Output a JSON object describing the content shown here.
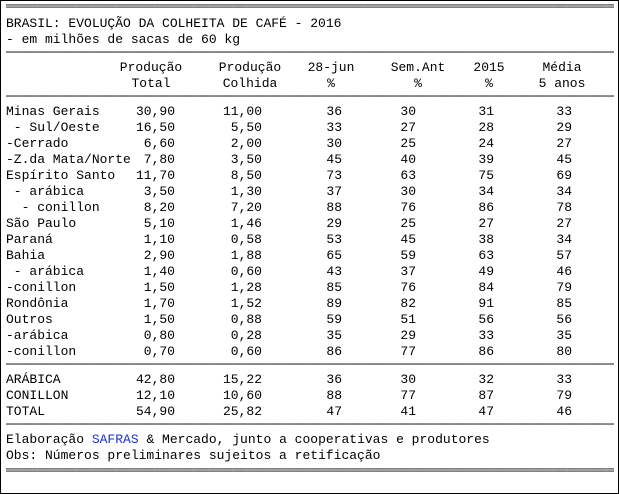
{
  "title": "BRASIL: EVOLUÇÃO DA COLHEITA DE CAFÉ - 2016",
  "subtitle": "- em milhões de sacas de 60 kg",
  "headers": [
    {
      "line1": "Produção",
      "line2": "Total"
    },
    {
      "line1": "Produção",
      "line2": "Colhida"
    },
    {
      "line1": "28-jun",
      "line2": "%"
    },
    {
      "line1": "Sem.Ant",
      "line2": "%"
    },
    {
      "line1": "2015",
      "line2": "%"
    },
    {
      "line1": "Média",
      "line2": "5 anos"
    }
  ],
  "rows": [
    [
      "Minas Gerais",
      "30,90",
      "11,00",
      "36",
      "30",
      "31",
      "33"
    ],
    [
      " - Sul/Oeste",
      "16,50",
      "5,50",
      "33",
      "27",
      "28",
      "29"
    ],
    [
      "-Cerrado",
      "6,60",
      "2,00",
      "30",
      "25",
      "24",
      "27"
    ],
    [
      "-Z.da Mata/Norte",
      "7,80",
      "3,50",
      "45",
      "40",
      "39",
      "45"
    ],
    [
      "Espírito Santo",
      "11,70",
      "8,50",
      "73",
      "63",
      "75",
      "69"
    ],
    [
      " - arábica",
      "3,50",
      "1,30",
      "37",
      "30",
      "34",
      "34"
    ],
    [
      "  - conillon",
      "8,20",
      "7,20",
      "88",
      "76",
      "86",
      "78"
    ],
    [
      "São Paulo",
      "5,10",
      "1,46",
      "29",
      "25",
      "27",
      "27"
    ],
    [
      "Paraná",
      "1,10",
      "0,58",
      "53",
      "45",
      "38",
      "34"
    ],
    [
      "Bahia",
      "2,90",
      "1,88",
      "65",
      "59",
      "63",
      "57"
    ],
    [
      " - arábica",
      "1,40",
      "0,60",
      "43",
      "37",
      "49",
      "46"
    ],
    [
      "-conillon",
      "1,50",
      "1,28",
      "85",
      "76",
      "84",
      "79"
    ],
    [
      "Rondônia",
      "1,70",
      "1,52",
      "89",
      "82",
      "91",
      "85"
    ],
    [
      "Outros",
      "1,50",
      "0,88",
      "59",
      "51",
      "56",
      "56"
    ],
    [
      "-arábica",
      "0,80",
      "0,28",
      "35",
      "29",
      "33",
      "35"
    ],
    [
      "-conillon",
      "0,70",
      "0,60",
      "86",
      "77",
      "86",
      "80"
    ]
  ],
  "totals": [
    [
      "ARÁBICA",
      "42,80",
      "15,22",
      "36",
      "30",
      "32",
      "33"
    ],
    [
      "CONILLON",
      "12,10",
      "10,60",
      "88",
      "77",
      "87",
      "79"
    ],
    [
      "TOTAL",
      "54,90",
      "25,82",
      "47",
      "41",
      "47",
      "46"
    ]
  ],
  "footer": {
    "prefix": "Elaboração ",
    "brand": "SAFRAS",
    "suffix": " & Mercado, junto a cooperativas e produtores",
    "note": "Obs: Números preliminares sujeitos a retificação"
  },
  "colors": {
    "brand": "#1a2fd6",
    "text": "#000000",
    "background": "#ffffff"
  }
}
